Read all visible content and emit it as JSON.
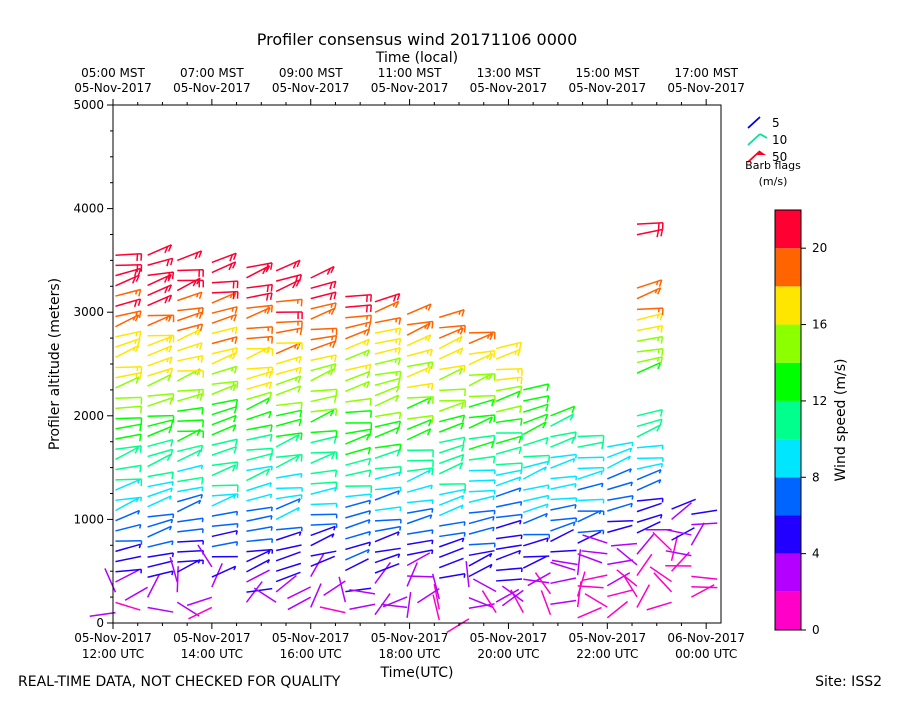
{
  "chart_data": {
    "type": "wind-barb",
    "title": "Profiler consensus wind 20171106 0000",
    "top_axis_label": "Time (local)",
    "top_ticks": [
      {
        "t": 12,
        "line1": "05:00 MST",
        "line2": "05-Nov-2017"
      },
      {
        "t": 14,
        "line1": "07:00 MST",
        "line2": "05-Nov-2017"
      },
      {
        "t": 16,
        "line1": "09:00 MST",
        "line2": "05-Nov-2017"
      },
      {
        "t": 18,
        "line1": "11:00 MST",
        "line2": "05-Nov-2017"
      },
      {
        "t": 20,
        "line1": "13:00 MST",
        "line2": "05-Nov-2017"
      },
      {
        "t": 22,
        "line1": "15:00 MST",
        "line2": "05-Nov-2017"
      },
      {
        "t": 24,
        "line1": "17:00 MST",
        "line2": "05-Nov-2017"
      }
    ],
    "xlabel": "Time(UTC)",
    "x_ticks": [
      {
        "t": 12,
        "line1": "05-Nov-2017",
        "line2": "12:00 UTC"
      },
      {
        "t": 14,
        "line1": "05-Nov-2017",
        "line2": "14:00 UTC"
      },
      {
        "t": 16,
        "line1": "05-Nov-2017",
        "line2": "16:00 UTC"
      },
      {
        "t": 18,
        "line1": "05-Nov-2017",
        "line2": "18:00 UTC"
      },
      {
        "t": 20,
        "line1": "05-Nov-2017",
        "line2": "20:00 UTC"
      },
      {
        "t": 22,
        "line1": "05-Nov-2017",
        "line2": "22:00 UTC"
      },
      {
        "t": 24,
        "line1": "06-Nov-2017",
        "line2": "00:00 UTC"
      }
    ],
    "xlim": [
      12,
      24.3
    ],
    "ylabel": "Profiler altitude (meters)",
    "ylim": [
      0,
      5000
    ],
    "y_ticks": [
      0,
      1000,
      2000,
      3000,
      4000,
      5000
    ],
    "y_minor_step": 250,
    "legend": {
      "title": "Barb flags",
      "units": "(m/s)",
      "entries": [
        {
          "label": "5",
          "color": "#0000dd"
        },
        {
          "label": "10",
          "color": "#00e39a"
        },
        {
          "label": "50",
          "color": "#ff0022"
        }
      ]
    },
    "colorbar": {
      "label": "Wind speed (m/s)",
      "min": 0,
      "max": 22,
      "ticks": [
        0,
        4,
        8,
        12,
        16,
        20
      ],
      "bins": [
        {
          "from": 0,
          "to": 2,
          "color": "#ff00c8"
        },
        {
          "from": 2,
          "to": 4,
          "color": "#b400ff"
        },
        {
          "from": 4,
          "to": 6,
          "color": "#2200ff"
        },
        {
          "from": 6,
          "to": 8,
          "color": "#0064ff"
        },
        {
          "from": 8,
          "to": 10,
          "color": "#00e6ff"
        },
        {
          "from": 10,
          "to": 12,
          "color": "#00ff8c"
        },
        {
          "from": 12,
          "to": 14,
          "color": "#00ff00"
        },
        {
          "from": 14,
          "to": 16,
          "color": "#8cff00"
        },
        {
          "from": 16,
          "to": 18,
          "color": "#ffe600"
        },
        {
          "from": 18,
          "to": 20,
          "color": "#ff6400"
        },
        {
          "from": 20,
          "to": 22,
          "color": "#ff0032"
        }
      ]
    },
    "profiles": [
      {
        "t": 12.05,
        "top": 3550,
        "bottom": 100,
        "rows": 36
      },
      {
        "t": 12.7,
        "top": 3550,
        "bottom": 150,
        "rows": 36
      },
      {
        "t": 13.3,
        "top": 3500,
        "bottom": 200,
        "rows": 35
      },
      {
        "t": 14.0,
        "top": 3480,
        "bottom": 150,
        "rows": 35
      },
      {
        "t": 14.7,
        "top": 3430,
        "bottom": 200,
        "rows": 34
      },
      {
        "t": 15.3,
        "top": 3400,
        "bottom": 200,
        "rows": 33
      },
      {
        "t": 16.0,
        "top": 3330,
        "bottom": 150,
        "rows": 33
      },
      {
        "t": 16.7,
        "top": 3150,
        "bottom": 100,
        "rows": 31
      },
      {
        "t": 17.3,
        "top": 3100,
        "bottom": 80,
        "rows": 31
      },
      {
        "t": 17.95,
        "top": 2980,
        "bottom": 50,
        "rows": 30
      },
      {
        "t": 18.6,
        "top": 2950,
        "bottom": 30,
        "rows": 30
      },
      {
        "t": 19.2,
        "top": 2800,
        "bottom": 40,
        "rows": 28
      },
      {
        "t": 19.75,
        "top": 2650,
        "bottom": 100,
        "rows": 26
      },
      {
        "t": 20.3,
        "top": 2250,
        "bottom": 100,
        "rows": 21
      },
      {
        "t": 20.85,
        "top": 2000,
        "bottom": 80,
        "rows": 20
      },
      {
        "t": 21.4,
        "top": 1800,
        "bottom": 50,
        "rows": 18
      },
      {
        "t": 22.0,
        "top": 1700,
        "bottom": 50,
        "rows": 17
      },
      {
        "t": 22.6,
        "top": 3850,
        "bottom": 150,
        "rows": 37
      },
      {
        "t": 23.3,
        "top": 1100,
        "bottom": 200,
        "rows": 10
      },
      {
        "t": 23.7,
        "top": 1050,
        "bottom": 250,
        "rows": 9
      }
    ]
  },
  "footer": {
    "left": "REAL-TIME DATA, NOT CHECKED FOR QUALITY",
    "right": "Site: ISS2"
  }
}
